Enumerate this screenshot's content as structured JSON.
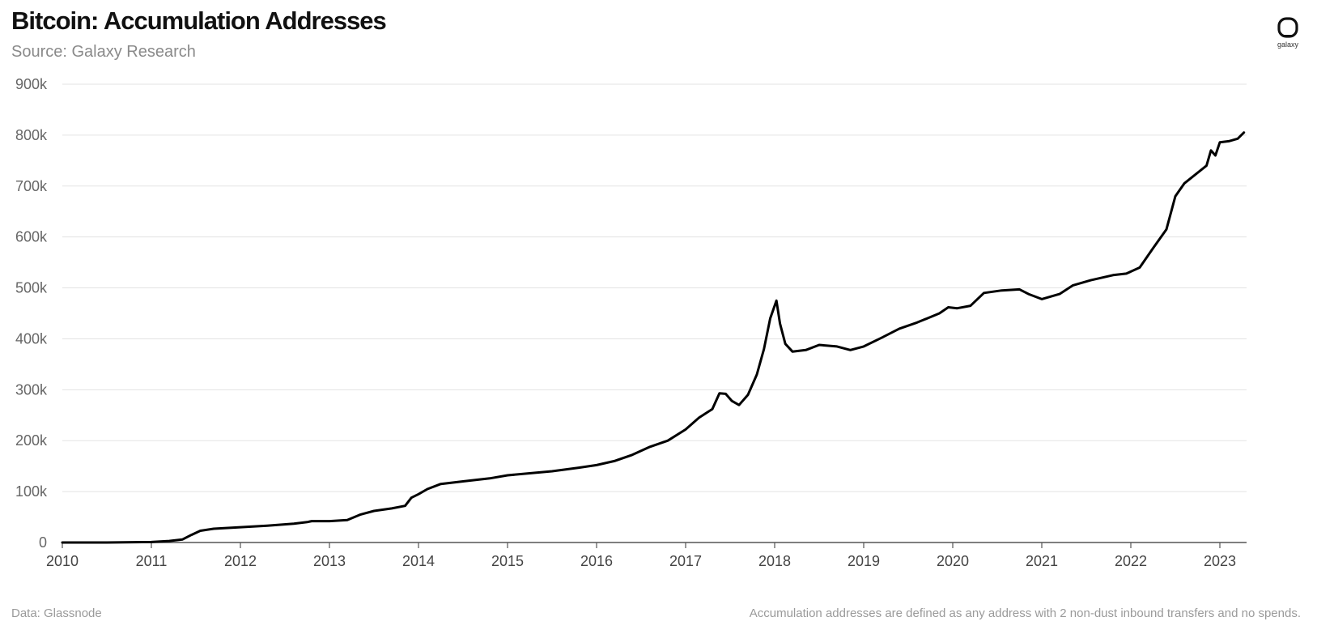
{
  "header": {
    "title": "Bitcoin: Accumulation Addresses",
    "subtitle": "Source: Galaxy Research"
  },
  "logo": {
    "icon": "galaxy-logo-icon",
    "text": "galaxy"
  },
  "footer": {
    "data_source": "Data: Glassnode",
    "note": "Accumulation addresses are defined as any address with 2 non-dust inbound transfers and no spends."
  },
  "colors": {
    "line": "#000000",
    "grid": "#e3e3e3",
    "axis": "#555555"
  },
  "chart_data": {
    "type": "line",
    "title": "Bitcoin: Accumulation Addresses",
    "subtitle": "Source: Galaxy Research",
    "xlabel": "",
    "ylabel": "",
    "xlim": [
      2010,
      2023.3
    ],
    "ylim": [
      0,
      900000
    ],
    "grid": true,
    "legend": "none",
    "x_ticks": [
      "2010",
      "2011",
      "2012",
      "2013",
      "2014",
      "2015",
      "2016",
      "2017",
      "2018",
      "2019",
      "2020",
      "2021",
      "2022",
      "2023"
    ],
    "y_ticks": [
      "0",
      "100k",
      "200k",
      "300k",
      "400k",
      "500k",
      "600k",
      "700k",
      "800k",
      "900k"
    ],
    "series": [
      {
        "x": [
          2010.0,
          2010.5,
          2011.0,
          2011.2,
          2011.35,
          2011.45,
          2011.55,
          2011.7,
          2012.0,
          2012.3,
          2012.6,
          2012.75,
          2012.8,
          2013.0,
          2013.2,
          2013.35,
          2013.5,
          2013.7,
          2013.85,
          2013.92,
          2014.0,
          2014.1,
          2014.25,
          2014.5,
          2014.8,
          2015.0,
          2015.5,
          2015.8,
          2016.0,
          2016.2,
          2016.4,
          2016.6,
          2016.8,
          2017.0,
          2017.15,
          2017.3,
          2017.38,
          2017.45,
          2017.52,
          2017.6,
          2017.7,
          2017.8,
          2017.88,
          2017.95,
          2018.02,
          2018.06,
          2018.12,
          2018.2,
          2018.35,
          2018.5,
          2018.7,
          2018.85,
          2019.0,
          2019.2,
          2019.4,
          2019.6,
          2019.85,
          2019.95,
          2020.05,
          2020.2,
          2020.35,
          2020.55,
          2020.75,
          2020.85,
          2021.0,
          2021.2,
          2021.35,
          2021.55,
          2021.8,
          2021.95,
          2022.1,
          2022.25,
          2022.4,
          2022.5,
          2022.6,
          2022.85,
          2022.9,
          2022.95,
          2023.0,
          2023.1,
          2023.2,
          2023.27
        ],
        "values": [
          0,
          0,
          1000,
          3000,
          6000,
          15000,
          23000,
          27000,
          30000,
          33000,
          37000,
          40000,
          42000,
          42000,
          44000,
          55000,
          62000,
          67000,
          72000,
          88000,
          95000,
          105000,
          115000,
          120000,
          126000,
          132000,
          140000,
          147000,
          152000,
          160000,
          172000,
          188000,
          200000,
          222000,
          245000,
          262000,
          293000,
          292000,
          278000,
          270000,
          290000,
          330000,
          380000,
          440000,
          475000,
          430000,
          390000,
          375000,
          378000,
          388000,
          385000,
          378000,
          385000,
          402000,
          420000,
          432000,
          450000,
          462000,
          460000,
          465000,
          490000,
          495000,
          497000,
          488000,
          478000,
          488000,
          505000,
          515000,
          525000,
          528000,
          540000,
          578000,
          615000,
          680000,
          705000,
          740000,
          770000,
          760000,
          786000,
          788000,
          793000,
          805000
        ]
      }
    ]
  }
}
